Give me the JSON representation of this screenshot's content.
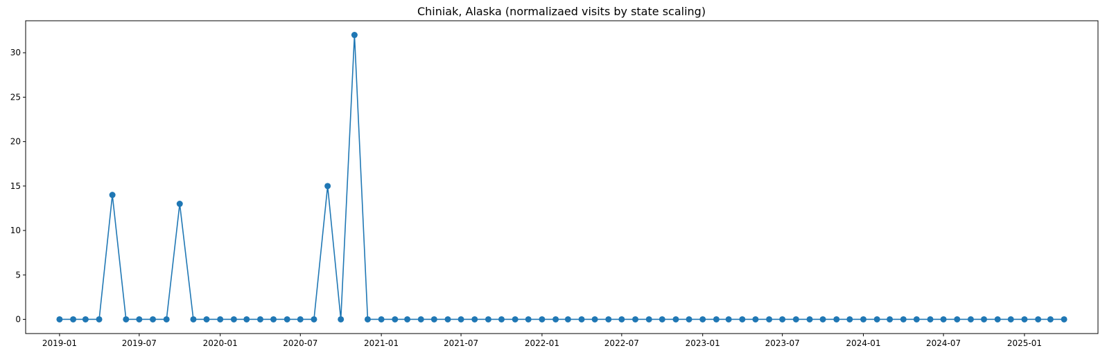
{
  "chart_data": {
    "type": "line",
    "title": "Chiniak, Alaska (normalizaed visits by state scaling)",
    "xlabel": "",
    "ylabel": "",
    "x_start": "2019-01",
    "x_freq": "monthly",
    "y": [
      0,
      0,
      0,
      0,
      14,
      0,
      0,
      0,
      0,
      13,
      0,
      0,
      0,
      0,
      0,
      0,
      0,
      0,
      0,
      0,
      15,
      0,
      32,
      0,
      0,
      0,
      0,
      0,
      0,
      0,
      0,
      0,
      0,
      0,
      0,
      0,
      0,
      0,
      0,
      0,
      0,
      0,
      0,
      0,
      0,
      0,
      0,
      0,
      0,
      0,
      0,
      0,
      0,
      0,
      0,
      0,
      0,
      0,
      0,
      0,
      0,
      0,
      0,
      0,
      0,
      0,
      0,
      0,
      0,
      0,
      0,
      0,
      0,
      0,
      0,
      0
    ],
    "xlim": [
      "2018-10-16",
      "2025-06-17"
    ],
    "ylim": [
      -1.6,
      33.6
    ],
    "xticks": [
      "2019-01",
      "2019-07",
      "2020-01",
      "2020-07",
      "2021-01",
      "2021-07",
      "2022-01",
      "2022-07",
      "2023-01",
      "2023-07",
      "2024-01",
      "2024-07",
      "2025-01"
    ],
    "yticks": [
      0,
      5,
      10,
      15,
      20,
      25,
      30
    ],
    "color": "#1f77b4",
    "marker": "circle",
    "grid": false,
    "legend": "none"
  }
}
